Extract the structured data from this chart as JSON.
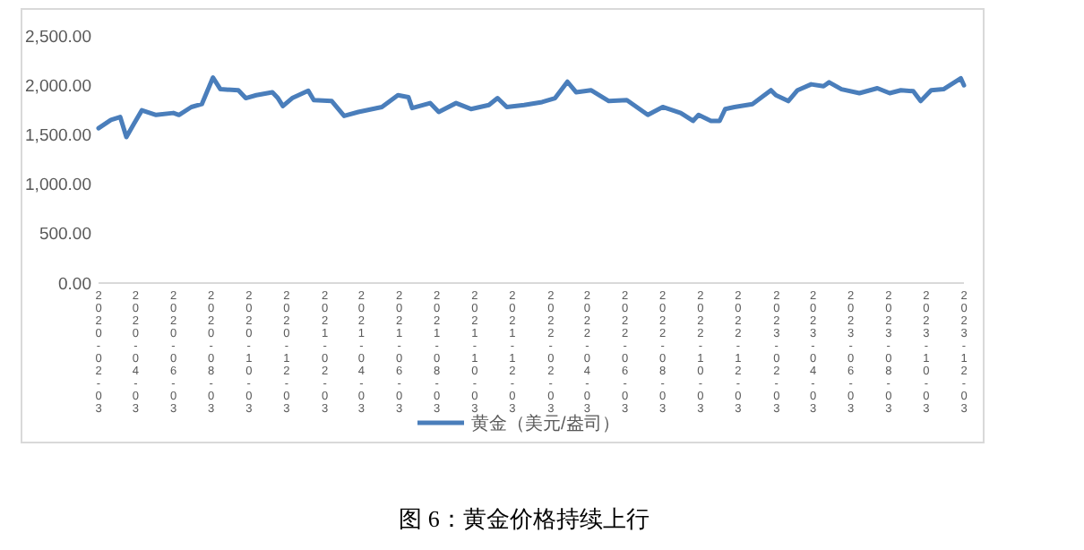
{
  "chart_data": {
    "type": "line",
    "annotations": [
      "图 6：黄金价格持续上行"
    ],
    "xlim": [
      "2020-02-03",
      "2023-12-03"
    ],
    "xticks": [
      {
        "value": "2020-02-03",
        "label": "2020-02-03"
      },
      {
        "value": "2020-04-03",
        "label": "2020-04-03"
      },
      {
        "value": "2020-06-03",
        "label": "2020-06-03"
      },
      {
        "value": "2020-08-03",
        "label": "2020-08-03"
      },
      {
        "value": "2020-10-03",
        "label": "2020-10-03"
      },
      {
        "value": "2020-12-03",
        "label": "2020-12-03"
      },
      {
        "value": "2021-02-03",
        "label": "2021-02-03"
      },
      {
        "value": "2021-04-03",
        "label": "2021-04-03"
      },
      {
        "value": "2021-06-03",
        "label": "2021-06-03"
      },
      {
        "value": "2021-08-03",
        "label": "2021-08-03"
      },
      {
        "value": "2021-10-03",
        "label": "2021-10-03"
      },
      {
        "value": "2021-12-03",
        "label": "2021-12-03"
      },
      {
        "value": "2022-02-03",
        "label": "2022-02-03"
      },
      {
        "value": "2022-04-03",
        "label": "2022-04-03"
      },
      {
        "value": "2022-06-03",
        "label": "2022-06-03"
      },
      {
        "value": "2022-08-03",
        "label": "2022-08-03"
      },
      {
        "value": "2022-10-03",
        "label": "2022-10-03"
      },
      {
        "value": "2022-12-03",
        "label": "2022-12-03"
      },
      {
        "value": "2023-02-03",
        "label": "2023-02-03"
      },
      {
        "value": "2023-04-03",
        "label": "2023-04-03"
      },
      {
        "value": "2023-06-03",
        "label": "2023-06-03"
      },
      {
        "value": "2023-08-03",
        "label": "2023-08-03"
      },
      {
        "value": "2023-10-03",
        "label": "2023-10-03"
      },
      {
        "value": "2023-12-03",
        "label": "2023-12-03"
      }
    ],
    "ylim": [
      0,
      2500
    ],
    "yticks": [
      {
        "value": 0,
        "label": "0.00"
      },
      {
        "value": 500,
        "label": "500.00"
      },
      {
        "value": 1000,
        "label": "1,000.00"
      },
      {
        "value": 1500,
        "label": "1,500.00"
      },
      {
        "value": 2000,
        "label": "2,000.00"
      },
      {
        "value": 2500,
        "label": "2,500.00"
      }
    ],
    "grid": false,
    "legend": "bottom",
    "marker": "none",
    "line_style": "solid",
    "x": [
      "2020-02-03",
      "2020-02-23",
      "2020-03-09",
      "2020-03-19",
      "2020-04-01",
      "2020-04-13",
      "2020-05-06",
      "2020-06-03",
      "2020-06-12",
      "2020-07-02",
      "2020-07-19",
      "2020-08-06",
      "2020-08-18",
      "2020-09-16",
      "2020-09-28",
      "2020-10-15",
      "2020-11-10",
      "2020-11-19",
      "2020-11-27",
      "2020-12-12",
      "2021-01-07",
      "2021-01-16",
      "2021-02-14",
      "2021-03-06",
      "2021-03-29",
      "2021-05-06",
      "2021-06-01",
      "2021-06-18",
      "2021-06-24",
      "2021-07-23",
      "2021-08-06",
      "2021-09-03",
      "2021-09-27",
      "2021-10-26",
      "2021-11-09",
      "2021-11-24",
      "2021-12-22",
      "2022-01-20",
      "2022-02-10",
      "2022-03-02",
      "2022-03-16",
      "2022-04-09",
      "2022-05-08",
      "2022-06-06",
      "2022-07-10",
      "2022-08-03",
      "2022-09-01",
      "2022-09-21",
      "2022-09-30",
      "2022-10-20",
      "2022-11-03",
      "2022-11-12",
      "2022-11-27",
      "2022-12-26",
      "2023-01-25",
      "2023-02-02",
      "2023-02-22",
      "2023-03-09",
      "2023-03-31",
      "2023-04-20",
      "2023-04-29",
      "2023-05-19",
      "2023-06-17",
      "2023-07-16",
      "2023-08-05",
      "2023-08-23",
      "2023-09-12",
      "2023-09-24",
      "2023-10-11",
      "2023-10-31",
      "2023-11-28",
      "2023-12-03"
    ],
    "series": [
      {
        "name": "黄金（美元/盎司）",
        "color": "#4a7ebb",
        "values": [
          1566,
          1650,
          1680,
          1476,
          1620,
          1747,
          1700,
          1720,
          1700,
          1780,
          1810,
          2078,
          1960,
          1950,
          1870,
          1900,
          1930,
          1870,
          1790,
          1870,
          1945,
          1850,
          1840,
          1690,
          1730,
          1780,
          1900,
          1880,
          1770,
          1820,
          1730,
          1820,
          1760,
          1800,
          1870,
          1780,
          1800,
          1830,
          1870,
          2036,
          1930,
          1950,
          1840,
          1850,
          1700,
          1780,
          1720,
          1640,
          1700,
          1640,
          1640,
          1760,
          1780,
          1810,
          1950,
          1900,
          1840,
          1950,
          2010,
          1990,
          2030,
          1960,
          1920,
          1970,
          1920,
          1950,
          1940,
          1840,
          1950,
          1960,
          2070,
          2000
        ]
      }
    ]
  }
}
